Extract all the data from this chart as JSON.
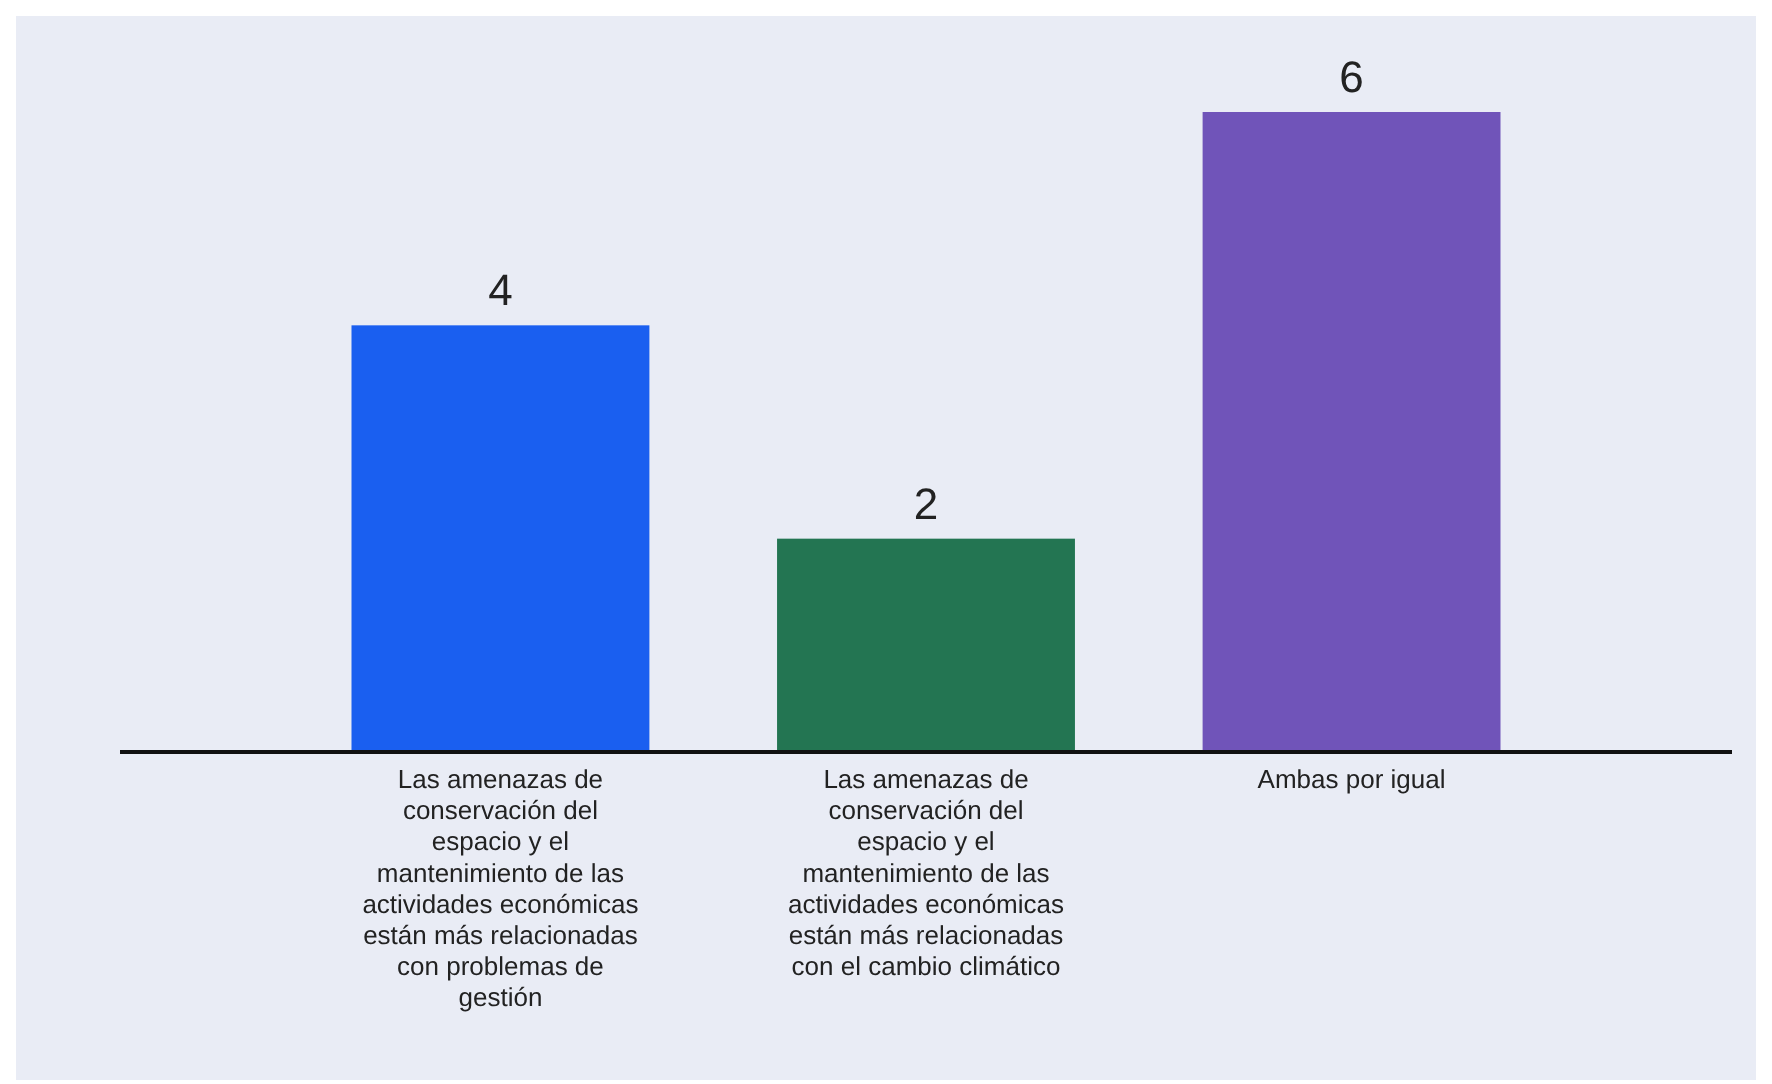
{
  "chart_data": {
    "type": "bar",
    "categories": [
      "Las amenazas de conservación del espacio y el mantenimiento de las actividades económicas están más relacionadas con problemas de gestión",
      "Las amenazas de conservación del espacio y el mantenimiento de las actividades económicas están más relacionadas con el cambio climático",
      "Ambas por igual"
    ],
    "values": [
      4,
      2,
      6
    ],
    "colors": [
      "#1a5ff0",
      "#237552",
      "#7054b9"
    ],
    "data_labels": true
  }
}
